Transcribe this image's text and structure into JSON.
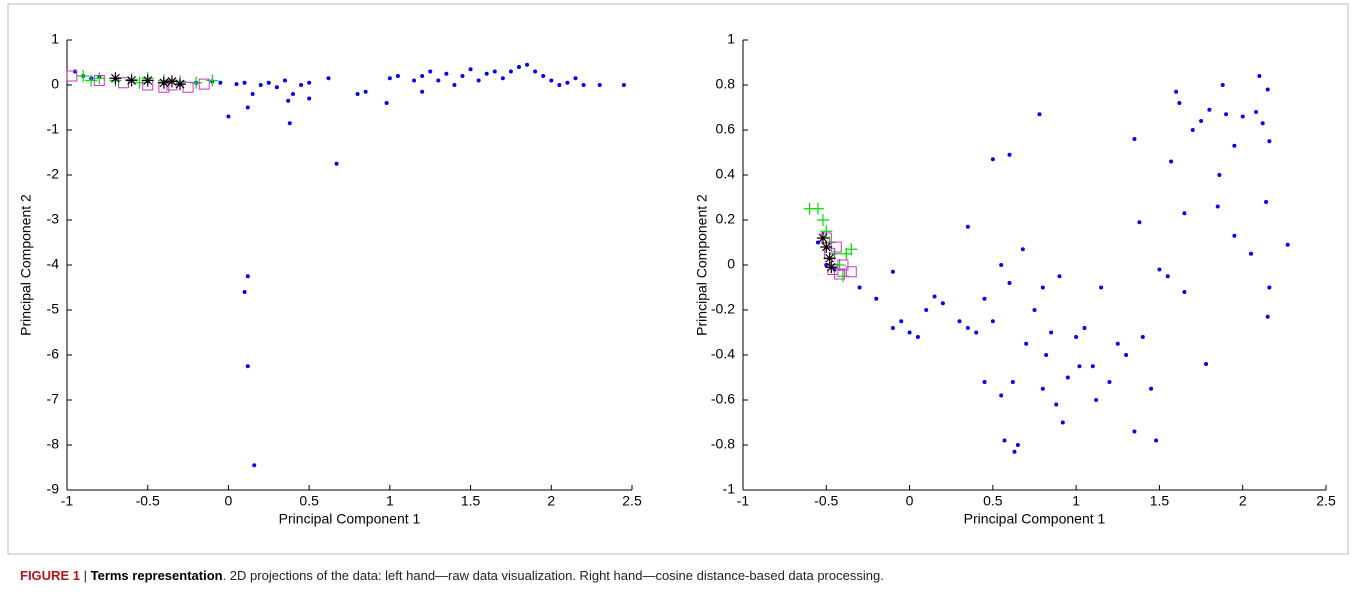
{
  "chart_data": [
    {
      "type": "scatter",
      "xlabel": "Principal Component 1",
      "ylabel": "Principal Component 2",
      "xlim": [
        -1,
        2.5
      ],
      "ylim": [
        -9,
        1
      ],
      "xticks": [
        -1,
        -0.5,
        0,
        0.5,
        1,
        1.5,
        2,
        2.5
      ],
      "yticks": [
        -9,
        -8,
        -7,
        -6,
        -5,
        -4,
        -3,
        -2,
        -1,
        0,
        1
      ],
      "series": [
        {
          "color": "#0000ff",
          "marker": "dot",
          "x": [
            -0.95,
            -0.9,
            -0.85,
            -0.8,
            -0.7,
            -0.6,
            -0.5,
            -0.4,
            -0.3,
            -0.2,
            -0.1,
            -0.05,
            0.0,
            0.05,
            0.1,
            0.12,
            0.15,
            0.2,
            0.25,
            0.3,
            0.35,
            0.37,
            0.38,
            0.4,
            0.45,
            0.5,
            0.5,
            0.62,
            0.67,
            0.8,
            0.85,
            0.98,
            1.0,
            1.05,
            1.15,
            1.2,
            1.2,
            1.25,
            1.3,
            1.35,
            1.4,
            1.45,
            1.5,
            1.55,
            1.6,
            1.65,
            1.7,
            1.75,
            1.8,
            1.85,
            1.9,
            1.95,
            2.0,
            2.05,
            2.1,
            2.15,
            2.2,
            2.3,
            2.45,
            0.1,
            0.12,
            0.12,
            0.16
          ],
          "y": [
            0.3,
            0.2,
            0.15,
            0.18,
            0.12,
            0.1,
            0.08,
            0.05,
            0.02,
            0.05,
            0.08,
            0.05,
            -0.7,
            0.02,
            0.05,
            -0.5,
            -0.2,
            0.0,
            0.05,
            -0.05,
            0.1,
            -0.35,
            -0.85,
            -0.2,
            0.0,
            -0.3,
            0.05,
            0.15,
            -1.75,
            -0.2,
            -0.15,
            -0.4,
            0.15,
            0.2,
            0.1,
            -0.15,
            0.2,
            0.3,
            0.1,
            0.25,
            0.0,
            0.2,
            0.35,
            0.1,
            0.25,
            0.3,
            0.15,
            0.3,
            0.4,
            0.45,
            0.3,
            0.2,
            0.1,
            0.0,
            0.05,
            0.15,
            0.0,
            0.0,
            0.0,
            -4.6,
            -4.25,
            -6.25,
            -8.45
          ]
        },
        {
          "color": "#00dd00",
          "marker": "plus",
          "x": [
            -0.9,
            -0.8,
            -0.7,
            -0.6,
            -0.5,
            -0.4,
            -0.3,
            -0.2,
            -0.1,
            -0.85,
            -0.55
          ],
          "y": [
            0.2,
            0.15,
            0.1,
            0.12,
            0.15,
            0.1,
            0.08,
            0.05,
            0.1,
            0.1,
            0.05
          ]
        },
        {
          "color": "#cc33cc",
          "marker": "square",
          "x": [
            -0.97,
            -0.8,
            -0.65,
            -0.5,
            -0.35,
            -0.25,
            -0.15,
            -0.4
          ],
          "y": [
            0.2,
            0.1,
            0.05,
            0.0,
            0.0,
            -0.05,
            0.02,
            -0.05
          ]
        },
        {
          "color": "#000000",
          "marker": "star",
          "x": [
            -0.7,
            -0.6,
            -0.5,
            -0.4,
            -0.35,
            -0.3
          ],
          "y": [
            0.15,
            0.1,
            0.1,
            0.05,
            0.08,
            0.02
          ]
        }
      ]
    },
    {
      "type": "scatter",
      "xlabel": "Principal Component 1",
      "ylabel": "Principal Component 2",
      "xlim": [
        -1,
        2.5
      ],
      "ylim": [
        -1,
        1
      ],
      "xticks": [
        -1,
        -0.5,
        0,
        0.5,
        1,
        1.5,
        2,
        2.5
      ],
      "yticks": [
        -1,
        -0.8,
        -0.6,
        -0.4,
        -0.2,
        0,
        0.2,
        0.4,
        0.6,
        0.8,
        1
      ],
      "series": [
        {
          "color": "#0000ff",
          "marker": "dot",
          "x": [
            -0.55,
            -0.5,
            -0.45,
            -0.3,
            -0.2,
            -0.1,
            -0.1,
            -0.05,
            0.0,
            0.05,
            0.1,
            0.15,
            0.2,
            0.3,
            0.35,
            0.35,
            0.4,
            0.45,
            0.45,
            0.5,
            0.5,
            0.55,
            0.55,
            0.6,
            0.6,
            0.62,
            0.65,
            0.68,
            0.7,
            0.75,
            0.78,
            0.8,
            0.8,
            0.82,
            0.85,
            0.88,
            0.9,
            0.92,
            0.95,
            1.0,
            1.02,
            1.05,
            1.1,
            1.12,
            1.15,
            1.2,
            1.25,
            1.3,
            1.35,
            1.35,
            1.38,
            1.4,
            1.45,
            1.48,
            1.5,
            1.55,
            1.57,
            1.6,
            1.62,
            1.65,
            1.65,
            1.7,
            1.75,
            1.78,
            1.8,
            1.85,
            1.86,
            1.88,
            1.9,
            1.95,
            1.95,
            2.0,
            2.05,
            2.08,
            2.1,
            2.12,
            2.14,
            2.15,
            2.16,
            2.16,
            2.15,
            2.27,
            0.57,
            0.63
          ],
          "y": [
            0.1,
            0.0,
            -0.02,
            -0.1,
            -0.15,
            -0.03,
            -0.28,
            -0.25,
            -0.3,
            -0.32,
            -0.2,
            -0.14,
            -0.17,
            -0.25,
            0.17,
            -0.28,
            -0.3,
            -0.15,
            -0.52,
            0.47,
            -0.25,
            0.0,
            -0.58,
            0.49,
            -0.08,
            -0.52,
            -0.8,
            0.07,
            -0.35,
            -0.2,
            0.67,
            -0.1,
            -0.55,
            -0.4,
            -0.3,
            -0.62,
            -0.05,
            -0.7,
            -0.5,
            -0.32,
            -0.45,
            -0.28,
            -0.45,
            -0.6,
            -0.1,
            -0.52,
            -0.35,
            -0.4,
            0.56,
            -0.74,
            0.19,
            -0.32,
            -0.55,
            -0.78,
            -0.02,
            -0.05,
            0.46,
            0.77,
            0.72,
            0.23,
            -0.12,
            0.6,
            0.64,
            -0.44,
            0.69,
            0.26,
            0.4,
            0.8,
            0.67,
            0.53,
            0.13,
            0.66,
            0.05,
            0.68,
            0.84,
            0.63,
            0.28,
            0.78,
            0.55,
            -0.1,
            -0.23,
            0.09,
            -0.78,
            -0.83
          ]
        },
        {
          "color": "#00dd00",
          "marker": "plus",
          "x": [
            -0.6,
            -0.55,
            -0.52,
            -0.5,
            -0.48,
            -0.45,
            -0.42,
            -0.4,
            -0.35,
            -0.38
          ],
          "y": [
            0.25,
            0.25,
            0.2,
            0.15,
            0.1,
            0.05,
            0.0,
            -0.05,
            0.07,
            0.05
          ]
        },
        {
          "color": "#cc33cc",
          "marker": "square",
          "x": [
            -0.5,
            -0.48,
            -0.46,
            -0.44,
            -0.4,
            -0.35,
            -0.42
          ],
          "y": [
            0.12,
            0.05,
            -0.02,
            0.08,
            0.0,
            -0.03,
            -0.04
          ]
        },
        {
          "color": "#000000",
          "marker": "star",
          "x": [
            -0.52,
            -0.5,
            -0.48,
            -0.47
          ],
          "y": [
            0.12,
            0.08,
            0.03,
            -0.01
          ]
        }
      ]
    }
  ],
  "caption": {
    "label": "FIGURE 1",
    "separator": "|",
    "title": "Terms representation",
    "text": ". 2D projections of the data: left hand—raw data visualization. Right hand—cosine distance-based data processing."
  }
}
